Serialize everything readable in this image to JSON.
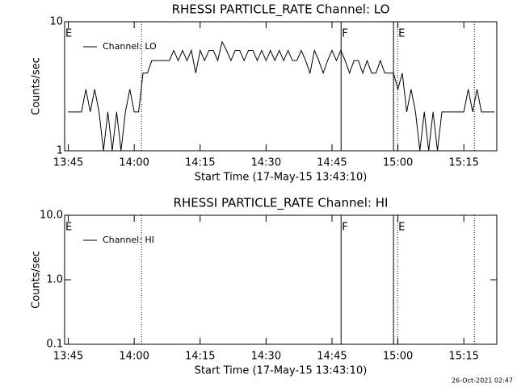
{
  "chart_data": [
    {
      "type": "line",
      "title": "RHESSI PARTICLE_RATE Channel: LO",
      "xlabel": "Start Time (17-May-15 13:43:10)",
      "ylabel": "Counts/sec",
      "log_y": true,
      "legend": "upper left",
      "x": [
        "13:45",
        "13:46",
        "13:47",
        "13:48",
        "13:49",
        "13:50",
        "13:51",
        "13:52",
        "13:53",
        "13:54",
        "13:55",
        "13:56",
        "13:57",
        "13:58",
        "13:59",
        "14:00",
        "14:01",
        "14:02",
        "14:03",
        "14:04",
        "14:05",
        "14:06",
        "14:07",
        "14:08",
        "14:09",
        "14:10",
        "14:11",
        "14:12",
        "14:13",
        "14:14",
        "14:15",
        "14:16",
        "14:17",
        "14:18",
        "14:19",
        "14:20",
        "14:21",
        "14:22",
        "14:23",
        "14:24",
        "14:25",
        "14:26",
        "14:27",
        "14:28",
        "14:29",
        "14:30",
        "14:31",
        "14:32",
        "14:33",
        "14:34",
        "14:35",
        "14:36",
        "14:37",
        "14:38",
        "14:39",
        "14:40",
        "14:41",
        "14:42",
        "14:43",
        "14:44",
        "14:45",
        "14:46",
        "14:47",
        "14:48",
        "14:49",
        "14:50",
        "14:51",
        "14:52",
        "14:53",
        "14:54",
        "14:55",
        "14:56",
        "14:57",
        "14:58",
        "14:59",
        "15:00",
        "15:01",
        "15:02",
        "15:03",
        "15:04",
        "15:05",
        "15:06",
        "15:07",
        "15:08",
        "15:09",
        "15:10",
        "15:11",
        "15:12",
        "15:13",
        "15:14",
        "15:15",
        "15:16",
        "15:17",
        "15:18",
        "15:19",
        "15:20",
        "15:21",
        "15:22"
      ],
      "series": [
        {
          "name": "Channel: LO",
          "color": "#000000",
          "values": [
            2,
            2,
            2,
            2,
            3,
            2,
            3,
            2,
            1,
            2,
            1,
            2,
            1,
            2,
            3,
            2,
            2,
            4,
            4,
            5,
            5,
            5,
            5,
            5,
            6,
            5,
            6,
            5,
            6,
            4,
            6,
            5,
            6,
            6,
            5,
            7,
            6,
            5,
            6,
            6,
            5,
            6,
            6,
            5,
            6,
            5,
            6,
            5,
            6,
            5,
            6,
            5,
            5,
            6,
            5,
            4,
            6,
            5,
            4,
            5,
            6,
            5,
            6,
            5,
            4,
            5,
            5,
            4,
            5,
            4,
            4,
            5,
            4,
            4,
            4,
            3,
            4,
            2,
            3,
            2,
            1,
            2,
            1,
            2,
            1,
            2,
            2,
            2,
            2,
            2,
            2,
            3,
            2,
            3,
            2,
            2,
            2,
            2
          ]
        }
      ],
      "xlim": [
        "13:44:10",
        "15:22:30"
      ],
      "xticks": [
        "13:45",
        "14:00",
        "14:15",
        "14:30",
        "14:45",
        "15:00",
        "15:15"
      ],
      "ylim": [
        1,
        10
      ],
      "yticks": [
        1,
        10
      ],
      "markers": [
        {
          "x": "13:44:10",
          "style": "none",
          "label": "E"
        },
        {
          "x": "14:01:40",
          "style": "dotted"
        },
        {
          "x": "14:47:04",
          "style": "solid",
          "label": "F"
        },
        {
          "x": "14:59:00",
          "style": "solid"
        },
        {
          "x": "14:59:55",
          "style": "dotted",
          "label": "E"
        },
        {
          "x": "15:17:24",
          "style": "dotted"
        }
      ]
    },
    {
      "type": "line",
      "title": "RHESSI PARTICLE_RATE Channel: HI",
      "xlabel": "Start Time (17-May-15 13:43:10)",
      "ylabel": "Counts/sec",
      "log_y": true,
      "legend": "upper left",
      "x": [],
      "series": [
        {
          "name": "Channel: HI",
          "color": "#000000",
          "values": []
        }
      ],
      "xlim": [
        "13:44:10",
        "15:22:30"
      ],
      "xticks": [
        "13:45",
        "14:00",
        "14:15",
        "14:30",
        "14:45",
        "15:00",
        "15:15"
      ],
      "ylim": [
        0.1,
        10
      ],
      "yticks": [
        0.1,
        {
          "value": 1,
          "label": "1.0"
        },
        {
          "value": 10,
          "label": "10.0"
        }
      ],
      "markers": [
        {
          "x": "13:44:10",
          "style": "none",
          "label": "E"
        },
        {
          "x": "14:01:40",
          "style": "dotted"
        },
        {
          "x": "14:47:04",
          "style": "solid",
          "label": "F"
        },
        {
          "x": "14:59:00",
          "style": "solid"
        },
        {
          "x": "14:59:55",
          "style": "dotted",
          "label": "E"
        },
        {
          "x": "15:17:24",
          "style": "dotted"
        }
      ]
    }
  ],
  "timestamp": "26-Oct-2021 02:47"
}
